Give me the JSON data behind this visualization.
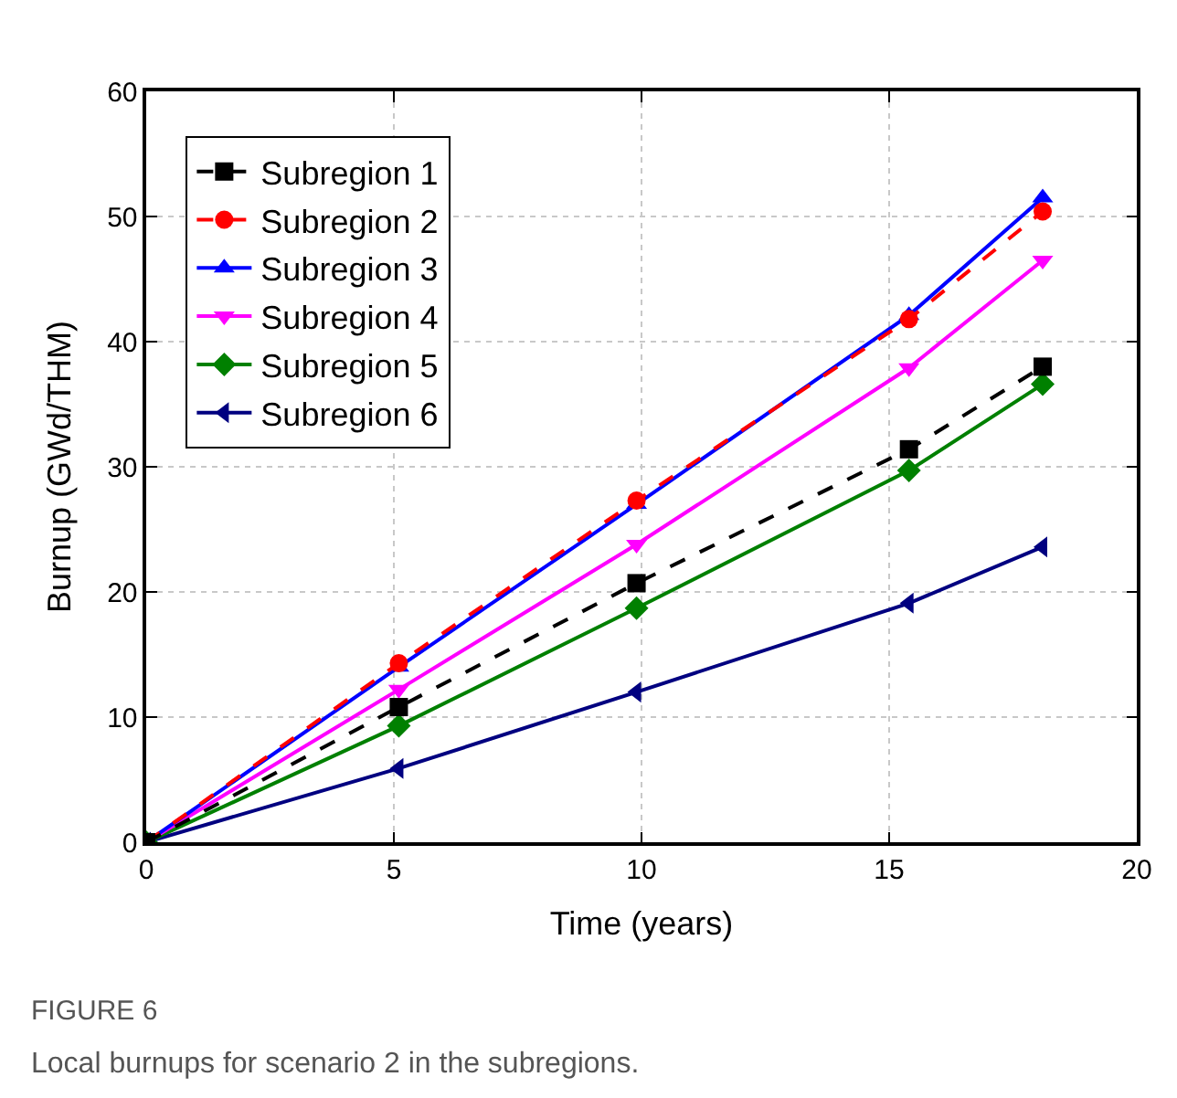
{
  "chart_data": {
    "type": "line",
    "xlabel": "Time (years)",
    "ylabel": "Burnup (GWd/THM)",
    "x": [
      0,
      5.1,
      9.9,
      15.4,
      18.1
    ],
    "series": [
      {
        "name": "Subregion 1",
        "color": "#000000",
        "marker": "square",
        "line_style": "dashed",
        "values": [
          0,
          10.8,
          20.7,
          31.4,
          38.0
        ]
      },
      {
        "name": "Subregion 2",
        "color": "#ff0000",
        "marker": "circle",
        "line_style": "dashed",
        "values": [
          0,
          14.3,
          27.3,
          41.8,
          50.4
        ]
      },
      {
        "name": "Subregion 3",
        "color": "#0000ff",
        "marker": "triangle",
        "line_style": "solid",
        "values": [
          0,
          14.0,
          27.0,
          42.1,
          51.5
        ]
      },
      {
        "name": "Subregion 4",
        "color": "#ff00ff",
        "marker": "triangle-down",
        "line_style": "solid",
        "values": [
          0,
          12.2,
          23.8,
          37.9,
          46.5
        ]
      },
      {
        "name": "Subregion 5",
        "color": "#008000",
        "marker": "diamond",
        "line_style": "solid",
        "values": [
          0,
          9.3,
          18.7,
          29.7,
          36.6
        ]
      },
      {
        "name": "Subregion 6",
        "color": "#000080",
        "marker": "triangle-left",
        "line_style": "solid",
        "values": [
          0,
          5.9,
          12.0,
          19.1,
          23.6
        ]
      }
    ],
    "xlim": [
      0,
      20
    ],
    "xticks": [
      0,
      5,
      10,
      15,
      20
    ],
    "ylim": [
      0,
      60
    ],
    "yticks": [
      0,
      10,
      20,
      30,
      40,
      50,
      60
    ],
    "grid": true,
    "legend": "top left",
    "annotations": [
      "FIGURE 6",
      "Local burnups for scenario 2 in the subregions."
    ]
  }
}
